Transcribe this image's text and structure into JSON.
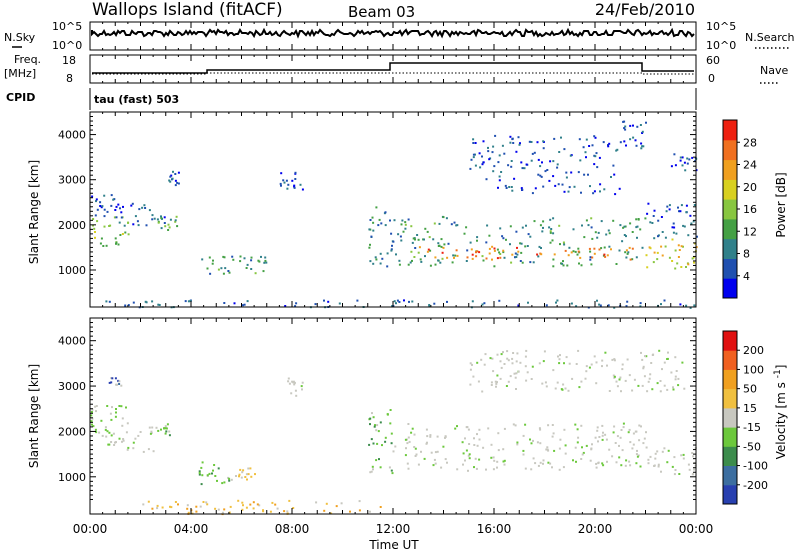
{
  "header": {
    "station": "Wallops Island (fitACF)",
    "beam": "Beam 03",
    "date": "24/Feb/2010"
  },
  "top_panels": {
    "nsky_label": "N.Sky",
    "nsky_ticks": [
      "10^5",
      "10^0"
    ],
    "nsearch_label": "N.Search",
    "nsearch_ticks": [
      "10^5",
      "10^0"
    ],
    "freq_label": "Freq.",
    "freq_unit": "[MHz]",
    "freq_ticks": [
      "18",
      "8"
    ],
    "nave_label": "Nave",
    "nave_ticks": [
      "60",
      "0"
    ],
    "cpid_label": "CPID",
    "cpid_value": "tau (fast) 503"
  },
  "chart_data": [
    {
      "type": "heatmap",
      "name": "power",
      "ylabel": "Slant Range [km]",
      "xlabel": "",
      "ylim": [
        180,
        4500
      ],
      "yticks": [
        "4000",
        "3000",
        "2000",
        "1000"
      ],
      "colorbar": {
        "label": "Power [dB]",
        "ticks": [
          "28",
          "24",
          "20",
          "16",
          "12",
          "8",
          "4"
        ],
        "colors": [
          "#0000ee",
          "#2050b0",
          "#30808a",
          "#44a044",
          "#88c640",
          "#d8d020",
          "#f0a020",
          "#f07020",
          "#ee2010"
        ]
      },
      "regions": [
        {
          "t0": 0.0,
          "t1": 1.5,
          "r0": 1550,
          "r1": 2200,
          "level": 14
        },
        {
          "t0": 0.0,
          "t1": 1.0,
          "r0": 2200,
          "r1": 2700,
          "level": 6
        },
        {
          "t0": 1.0,
          "t1": 3.0,
          "r0": 2000,
          "r1": 2500,
          "level": 5
        },
        {
          "t0": 2.5,
          "t1": 3.5,
          "r0": 1900,
          "r1": 2200,
          "level": 12
        },
        {
          "t0": 3.0,
          "t1": 3.5,
          "r0": 2900,
          "r1": 3200,
          "level": 5
        },
        {
          "t0": 4.0,
          "t1": 7.0,
          "r0": 900,
          "r1": 1350,
          "level": 10
        },
        {
          "t0": 7.5,
          "t1": 8.5,
          "r0": 2800,
          "r1": 3200,
          "level": 5
        },
        {
          "t0": 11.0,
          "t1": 12.0,
          "r0": 1100,
          "r1": 2500,
          "level": 8
        },
        {
          "t0": 12.0,
          "t1": 22.0,
          "r0": 1100,
          "r1": 2200,
          "level": 10
        },
        {
          "t0": 13.0,
          "t1": 21.5,
          "r0": 1250,
          "r1": 1550,
          "level": 24
        },
        {
          "t0": 15.0,
          "t1": 21.0,
          "r0": 2700,
          "r1": 4000,
          "level": 5
        },
        {
          "t0": 21.0,
          "t1": 22.0,
          "r0": 3700,
          "r1": 4400,
          "level": 5
        },
        {
          "t0": 22.0,
          "t1": 24.0,
          "r0": 1050,
          "r1": 1700,
          "level": 18
        },
        {
          "t0": 22.0,
          "t1": 24.0,
          "r0": 1700,
          "r1": 2500,
          "level": 6
        },
        {
          "t0": 23.0,
          "t1": 24.0,
          "r0": 3200,
          "r1": 3600,
          "level": 5
        },
        {
          "t0": 0.0,
          "t1": 24.0,
          "r0": 180,
          "r1": 350,
          "level": 6
        }
      ]
    },
    {
      "type": "heatmap",
      "name": "velocity",
      "ylabel": "Slant Range [km]",
      "xlabel": "Time UT",
      "ylim": [
        180,
        4500
      ],
      "yticks": [
        "4000",
        "3000",
        "2000",
        "1000"
      ],
      "xticks": [
        "00:00",
        "04:00",
        "08:00",
        "12:00",
        "16:00",
        "20:00",
        "00:00"
      ],
      "xlim": [
        0,
        24
      ],
      "colorbar": {
        "label": "Velocity [m s^-1]",
        "ticks": [
          "200",
          "100",
          "50",
          "15",
          "-15",
          "-50",
          "-100",
          "-200"
        ],
        "colors": [
          "#2840b0",
          "#3c6ea0",
          "#3c8c4c",
          "#6cc83c",
          "#c8c8c0",
          "#f0c040",
          "#f0a020",
          "#f06020",
          "#e01010"
        ]
      },
      "regions": [
        {
          "t0": 0.0,
          "t1": 2.5,
          "r0": 1550,
          "r1": 2200,
          "vclass": "ground"
        },
        {
          "t0": 0.0,
          "t1": 1.5,
          "r0": 2200,
          "r1": 2600,
          "vclass": "ground"
        },
        {
          "t0": 0.7,
          "t1": 1.2,
          "r0": 3000,
          "r1": 3200,
          "vclass": "toward"
        },
        {
          "t0": 2.5,
          "t1": 3.3,
          "r0": 1900,
          "r1": 2200,
          "vclass": "toward_weak"
        },
        {
          "t0": 4.3,
          "t1": 5.5,
          "r0": 850,
          "r1": 1350,
          "vclass": "toward_weak"
        },
        {
          "t0": 5.5,
          "t1": 6.5,
          "r0": 900,
          "r1": 1250,
          "vclass": "away"
        },
        {
          "t0": 7.8,
          "t1": 8.4,
          "r0": 2800,
          "r1": 3200,
          "vclass": "ground"
        },
        {
          "t0": 11.0,
          "t1": 12.0,
          "r0": 1100,
          "r1": 2500,
          "vclass": "toward_weak"
        },
        {
          "t0": 12.0,
          "t1": 22.0,
          "r0": 1150,
          "r1": 2200,
          "vclass": "ground"
        },
        {
          "t0": 22.0,
          "t1": 24.0,
          "r0": 1050,
          "r1": 1700,
          "vclass": "ground"
        },
        {
          "t0": 15.0,
          "t1": 23.5,
          "r0": 2900,
          "r1": 3800,
          "vclass": "ground"
        },
        {
          "t0": 2.0,
          "t1": 11.5,
          "r0": 200,
          "r1": 500,
          "vclass": "away"
        }
      ]
    }
  ]
}
